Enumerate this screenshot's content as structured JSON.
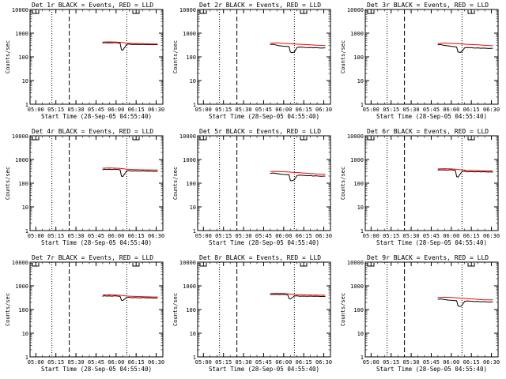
{
  "figure_colors": {
    "background": "#ffffff",
    "frame": "#000000",
    "events_line": "#000000",
    "lld_line": "#ff0000"
  },
  "common": {
    "xlabel": "Start Time (28-Sep-05 04:55:40)",
    "ylabel": "Counts/sec",
    "xtick_labels": [
      "05:00",
      "05:15",
      "05:30",
      "05:45",
      "06:00",
      "06:15",
      "06:30"
    ],
    "ytick_labels": [
      "1",
      "10",
      "100",
      "1000",
      "10000"
    ]
  },
  "chart_data": [
    {
      "type": "line",
      "title": "Det 1r BLACK = Events, RED = LLD",
      "xlabel": "Start Time (28-Sep-05 04:55:40)",
      "ylabel": "Counts/sec",
      "xlim": [
        "04:55:40",
        "06:35:00"
      ],
      "ylim": [
        1,
        10000
      ],
      "yscale": "log",
      "dotted_vlines": [
        "05:12",
        "06:08"
      ],
      "dashed_vlines": [
        "05:25"
      ],
      "series": [
        {
          "name": "Events",
          "color": "#000000",
          "x": [
            "05:50",
            "05:51",
            "05:53",
            "05:55",
            "05:57",
            "05:59",
            "06:01",
            "06:03",
            "06:04",
            "06:05",
            "06:08",
            "06:10",
            "06:12",
            "06:14",
            "06:16",
            "06:18",
            "06:20",
            "06:22",
            "06:24",
            "06:26",
            "06:28",
            "06:30",
            "06:31"
          ],
          "values": [
            380,
            400,
            390,
            395,
            385,
            400,
            390,
            380,
            200,
            190,
            340,
            350,
            330,
            340,
            335,
            330,
            340,
            330,
            335,
            330,
            325,
            330,
            320
          ]
        },
        {
          "name": "LLD",
          "color": "#ff0000",
          "x": [
            "05:50",
            "05:55",
            "06:00",
            "06:03",
            "06:05",
            "06:08",
            "06:12",
            "06:16",
            "06:20",
            "06:24",
            "06:28",
            "06:31"
          ],
          "values": [
            420,
            430,
            420,
            410,
            400,
            380,
            370,
            365,
            360,
            355,
            350,
            350
          ]
        }
      ]
    },
    {
      "type": "line",
      "title": "Det 2r BLACK = Events, RED = LLD",
      "xlabel": "Start Time (28-Sep-05 04:55:40)",
      "ylabel": "Counts/sec",
      "xlim": [
        "04:55:40",
        "06:35:00"
      ],
      "ylim": [
        1,
        10000
      ],
      "yscale": "log",
      "dotted_vlines": [
        "05:12",
        "06:08"
      ],
      "dashed_vlines": [
        "05:25"
      ],
      "series": [
        {
          "name": "Events",
          "color": "#000000",
          "x": [
            "05:50",
            "05:52",
            "05:54",
            "05:56",
            "05:58",
            "06:00",
            "06:02",
            "06:04",
            "06:05",
            "06:06",
            "06:08",
            "06:10",
            "06:12",
            "06:14",
            "06:16",
            "06:18",
            "06:20",
            "06:22",
            "06:24",
            "06:26",
            "06:28",
            "06:31"
          ],
          "values": [
            330,
            340,
            320,
            300,
            290,
            280,
            280,
            270,
            160,
            150,
            160,
            250,
            260,
            255,
            250,
            245,
            250,
            240,
            245,
            240,
            235,
            240
          ]
        },
        {
          "name": "LLD",
          "color": "#ff0000",
          "x": [
            "05:50",
            "05:55",
            "06:00",
            "06:04",
            "06:08",
            "06:12",
            "06:16",
            "06:20",
            "06:24",
            "06:28",
            "06:31"
          ],
          "values": [
            380,
            390,
            370,
            360,
            350,
            340,
            330,
            320,
            310,
            305,
            300
          ]
        }
      ]
    },
    {
      "type": "line",
      "title": "Det 3r BLACK = Events, RED = LLD",
      "xlabel": "Start Time (28-Sep-05 04:55:40)",
      "ylabel": "Counts/sec",
      "xlim": [
        "04:55:40",
        "06:35:00"
      ],
      "ylim": [
        1,
        10000
      ],
      "yscale": "log",
      "dotted_vlines": [
        "05:12",
        "06:08"
      ],
      "dashed_vlines": [
        "05:25"
      ],
      "series": [
        {
          "name": "Events",
          "color": "#000000",
          "x": [
            "05:50",
            "05:52",
            "05:54",
            "05:56",
            "05:58",
            "06:00",
            "06:02",
            "06:04",
            "06:05",
            "06:07",
            "06:08",
            "06:10",
            "06:12",
            "06:14",
            "06:16",
            "06:18",
            "06:20",
            "06:22",
            "06:24",
            "06:26",
            "06:28",
            "06:31"
          ],
          "values": [
            320,
            330,
            310,
            300,
            290,
            280,
            270,
            260,
            160,
            155,
            170,
            240,
            250,
            245,
            240,
            235,
            240,
            230,
            235,
            230,
            225,
            230
          ]
        },
        {
          "name": "LLD",
          "color": "#ff0000",
          "x": [
            "05:50",
            "05:55",
            "06:00",
            "06:04",
            "06:08",
            "06:12",
            "06:16",
            "06:20",
            "06:24",
            "06:28",
            "06:31"
          ],
          "values": [
            370,
            380,
            370,
            360,
            350,
            340,
            330,
            320,
            310,
            300,
            300
          ]
        }
      ]
    },
    {
      "type": "line",
      "title": "Det 4r BLACK = Events, RED = LLD",
      "xlabel": "Start Time (28-Sep-05 04:55:40)",
      "ylabel": "Counts/sec",
      "xlim": [
        "04:55:40",
        "06:35:00"
      ],
      "ylim": [
        1,
        10000
      ],
      "yscale": "log",
      "dotted_vlines": [
        "05:12",
        "06:08"
      ],
      "dashed_vlines": [
        "05:25"
      ],
      "series": [
        {
          "name": "Events",
          "color": "#000000",
          "x": [
            "05:50",
            "05:51",
            "05:53",
            "05:55",
            "05:57",
            "05:59",
            "06:01",
            "06:03",
            "06:04",
            "06:05",
            "06:08",
            "06:10",
            "06:12",
            "06:14",
            "06:16",
            "06:18",
            "06:20",
            "06:22",
            "06:24",
            "06:26",
            "06:28",
            "06:30",
            "06:31"
          ],
          "values": [
            370,
            390,
            380,
            385,
            375,
            390,
            380,
            370,
            200,
            190,
            330,
            340,
            320,
            330,
            325,
            320,
            330,
            320,
            325,
            320,
            315,
            320,
            310
          ]
        },
        {
          "name": "LLD",
          "color": "#ff0000",
          "x": [
            "05:50",
            "05:55",
            "06:00",
            "06:03",
            "06:05",
            "06:08",
            "06:12",
            "06:16",
            "06:20",
            "06:24",
            "06:28",
            "06:31"
          ],
          "values": [
            430,
            440,
            430,
            420,
            410,
            390,
            380,
            375,
            370,
            365,
            360,
            360
          ]
        }
      ]
    },
    {
      "type": "line",
      "title": "Det 5r BLACK = Events, RED = LLD",
      "xlabel": "Start Time (28-Sep-05 04:55:40)",
      "ylabel": "Counts/sec",
      "xlim": [
        "04:55:40",
        "06:35:00"
      ],
      "ylim": [
        1,
        10000
      ],
      "yscale": "log",
      "dotted_vlines": [
        "05:12",
        "06:08"
      ],
      "dashed_vlines": [
        "05:25"
      ],
      "series": [
        {
          "name": "Events",
          "color": "#000000",
          "x": [
            "05:50",
            "05:52",
            "05:54",
            "05:56",
            "05:58",
            "06:00",
            "06:02",
            "06:04",
            "06:05",
            "06:06",
            "06:08",
            "06:10",
            "06:12",
            "06:14",
            "06:16",
            "06:18",
            "06:20",
            "06:22",
            "06:24",
            "06:26",
            "06:28",
            "06:31"
          ],
          "values": [
            260,
            270,
            260,
            250,
            240,
            235,
            230,
            225,
            130,
            125,
            140,
            210,
            220,
            215,
            210,
            205,
            210,
            200,
            205,
            200,
            195,
            200
          ]
        },
        {
          "name": "LLD",
          "color": "#ff0000",
          "x": [
            "05:50",
            "05:55",
            "06:00",
            "06:04",
            "06:08",
            "06:12",
            "06:16",
            "06:20",
            "06:24",
            "06:28",
            "06:31"
          ],
          "values": [
            310,
            315,
            305,
            295,
            285,
            275,
            265,
            255,
            245,
            240,
            240
          ]
        }
      ]
    },
    {
      "type": "line",
      "title": "Det 6r BLACK = Events, RED = LLD",
      "xlabel": "Start Time (28-Sep-05 04:55:40)",
      "ylabel": "Counts/sec",
      "xlim": [
        "04:55:40",
        "06:35:00"
      ],
      "ylim": [
        1,
        10000
      ],
      "yscale": "log",
      "dotted_vlines": [
        "05:12",
        "06:08"
      ],
      "dashed_vlines": [
        "05:25"
      ],
      "series": [
        {
          "name": "Events",
          "color": "#000000",
          "x": [
            "05:50",
            "05:51",
            "05:53",
            "05:55",
            "05:57",
            "05:59",
            "06:01",
            "06:03",
            "06:04",
            "06:05",
            "06:08",
            "06:10",
            "06:12",
            "06:14",
            "06:16",
            "06:18",
            "06:20",
            "06:22",
            "06:24",
            "06:26",
            "06:28",
            "06:30",
            "06:31"
          ],
          "values": [
            350,
            370,
            360,
            365,
            355,
            370,
            360,
            350,
            190,
            180,
            310,
            320,
            300,
            310,
            305,
            300,
            310,
            300,
            305,
            300,
            295,
            300,
            290
          ]
        },
        {
          "name": "LLD",
          "color": "#ff0000",
          "x": [
            "05:50",
            "05:55",
            "06:00",
            "06:03",
            "06:05",
            "06:08",
            "06:12",
            "06:16",
            "06:20",
            "06:24",
            "06:28",
            "06:31"
          ],
          "values": [
            400,
            410,
            400,
            390,
            380,
            360,
            350,
            345,
            340,
            335,
            330,
            330
          ]
        }
      ]
    },
    {
      "type": "line",
      "title": "Det 7r BLACK = Events, RED = LLD",
      "xlabel": "Start Time (28-Sep-05 04:55:40)",
      "ylabel": "Counts/sec",
      "xlim": [
        "04:55:40",
        "06:35:00"
      ],
      "ylim": [
        1,
        10000
      ],
      "yscale": "log",
      "dotted_vlines": [
        "05:12",
        "06:08"
      ],
      "dashed_vlines": [
        "05:25"
      ],
      "series": [
        {
          "name": "Events",
          "color": "#000000",
          "x": [
            "05:50",
            "05:51",
            "05:53",
            "05:55",
            "05:57",
            "05:59",
            "06:01",
            "06:03",
            "06:04",
            "06:05",
            "06:08",
            "06:10",
            "06:12",
            "06:14",
            "06:16",
            "06:18",
            "06:20",
            "06:22",
            "06:24",
            "06:26",
            "06:28",
            "06:30",
            "06:31"
          ],
          "values": [
            360,
            380,
            370,
            375,
            365,
            380,
            370,
            360,
            250,
            240,
            320,
            330,
            310,
            320,
            315,
            310,
            320,
            310,
            315,
            310,
            305,
            310,
            300
          ]
        },
        {
          "name": "LLD",
          "color": "#ff0000",
          "x": [
            "05:50",
            "05:55",
            "06:00",
            "06:03",
            "06:05",
            "06:08",
            "06:12",
            "06:16",
            "06:20",
            "06:24",
            "06:28",
            "06:31"
          ],
          "values": [
            410,
            420,
            410,
            400,
            390,
            370,
            360,
            355,
            350,
            345,
            340,
            340
          ]
        }
      ]
    },
    {
      "type": "line",
      "title": "Det 8r BLACK = Events, RED = LLD",
      "xlabel": "Start Time (28-Sep-05 04:55:40)",
      "ylabel": "Counts/sec",
      "xlim": [
        "04:55:40",
        "06:35:00"
      ],
      "ylim": [
        1,
        10000
      ],
      "yscale": "log",
      "dotted_vlines": [
        "05:12",
        "06:08"
      ],
      "dashed_vlines": [
        "05:25"
      ],
      "series": [
        {
          "name": "Events",
          "color": "#000000",
          "x": [
            "05:50",
            "05:51",
            "05:53",
            "05:55",
            "05:57",
            "05:59",
            "06:01",
            "06:03",
            "06:04",
            "06:05",
            "06:08",
            "06:10",
            "06:12",
            "06:14",
            "06:16",
            "06:18",
            "06:20",
            "06:22",
            "06:24",
            "06:26",
            "06:28",
            "06:30",
            "06:31"
          ],
          "values": [
            420,
            440,
            430,
            435,
            425,
            440,
            430,
            420,
            290,
            280,
            370,
            380,
            360,
            370,
            365,
            360,
            370,
            360,
            365,
            360,
            355,
            360,
            350
          ]
        },
        {
          "name": "LLD",
          "color": "#ff0000",
          "x": [
            "05:50",
            "05:55",
            "06:00",
            "06:03",
            "06:05",
            "06:08",
            "06:12",
            "06:16",
            "06:20",
            "06:24",
            "06:28",
            "06:31"
          ],
          "values": [
            470,
            480,
            470,
            460,
            450,
            430,
            420,
            415,
            410,
            405,
            400,
            400
          ]
        }
      ]
    },
    {
      "type": "line",
      "title": "Det 9r BLACK = Events, RED = LLD",
      "xlabel": "Start Time (28-Sep-05 04:55:40)",
      "ylabel": "Counts/sec",
      "xlim": [
        "04:55:40",
        "06:35:00"
      ],
      "ylim": [
        1,
        10000
      ],
      "yscale": "log",
      "dotted_vlines": [
        "05:12",
        "06:08"
      ],
      "dashed_vlines": [
        "05:25"
      ],
      "series": [
        {
          "name": "Events",
          "color": "#000000",
          "x": [
            "05:50",
            "05:52",
            "05:54",
            "05:56",
            "05:58",
            "06:00",
            "06:02",
            "06:04",
            "06:05",
            "06:07",
            "06:08",
            "06:10",
            "06:12",
            "06:14",
            "06:16",
            "06:18",
            "06:20",
            "06:22",
            "06:24",
            "06:26",
            "06:28",
            "06:31"
          ],
          "values": [
            270,
            280,
            270,
            260,
            250,
            245,
            240,
            235,
            140,
            135,
            150,
            220,
            230,
            225,
            220,
            215,
            220,
            210,
            215,
            210,
            205,
            210
          ]
        },
        {
          "name": "LLD",
          "color": "#ff0000",
          "x": [
            "05:50",
            "05:55",
            "06:00",
            "06:04",
            "06:08",
            "06:12",
            "06:16",
            "06:20",
            "06:24",
            "06:28",
            "06:31"
          ],
          "values": [
            320,
            330,
            320,
            310,
            300,
            290,
            280,
            270,
            260,
            255,
            255
          ]
        }
      ]
    }
  ]
}
